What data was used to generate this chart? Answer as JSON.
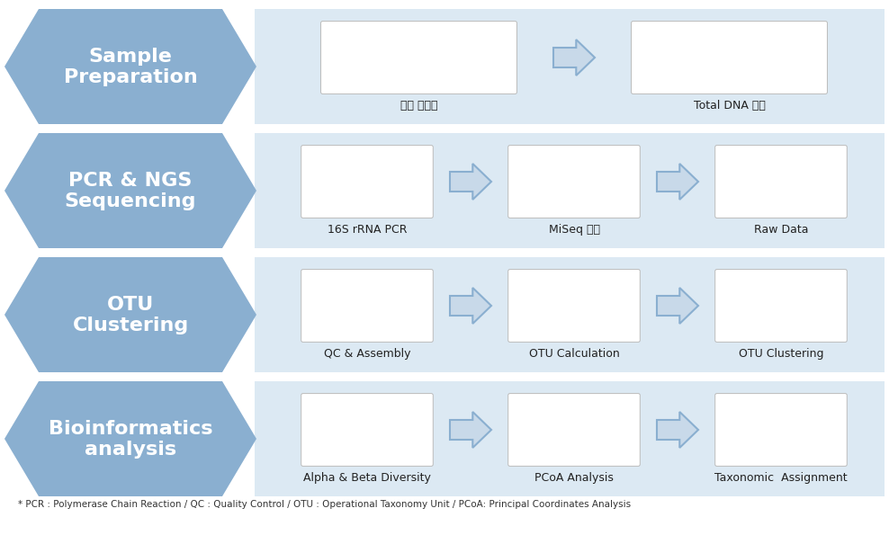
{
  "bg_color": "#ffffff",
  "chevron_color": "#8AAFD0",
  "band_color": "#C8D9E9",
  "band_inner_color": "#DCE9F3",
  "small_arrow_fill": "#C8D9E9",
  "small_arrow_edge": "#8AAFD0",
  "rows": [
    {
      "label_line1": "Sample",
      "label_line2": "Preparation",
      "items": [
        "식품 샘플링",
        "Total DNA 추출"
      ],
      "n_items": 2
    },
    {
      "label_line1": "PCR & NGS",
      "label_line2": "Sequencing",
      "items": [
        "16S rRNA PCR",
        "MiSeq 분석",
        "Raw Data"
      ],
      "n_items": 3
    },
    {
      "label_line1": "OTU",
      "label_line2": "Clustering",
      "items": [
        "QC & Assembly",
        "OTU Calculation",
        "OTU Clustering"
      ],
      "n_items": 3
    },
    {
      "label_line1": "Bioinformatics",
      "label_line2": "analysis",
      "items": [
        "Alpha & Beta Diversity",
        "PCoA Analysis",
        "Taxonomic  Assignment"
      ],
      "n_items": 3
    }
  ],
  "footnote": "* PCR : Polymerase Chain Reaction / QC : Quality Control / OTU : Operational Taxonomy Unit / PCoA: Principal Coordinates Analysis",
  "label_font_size": 16,
  "item_font_size": 9,
  "footnote_font_size": 7.5
}
